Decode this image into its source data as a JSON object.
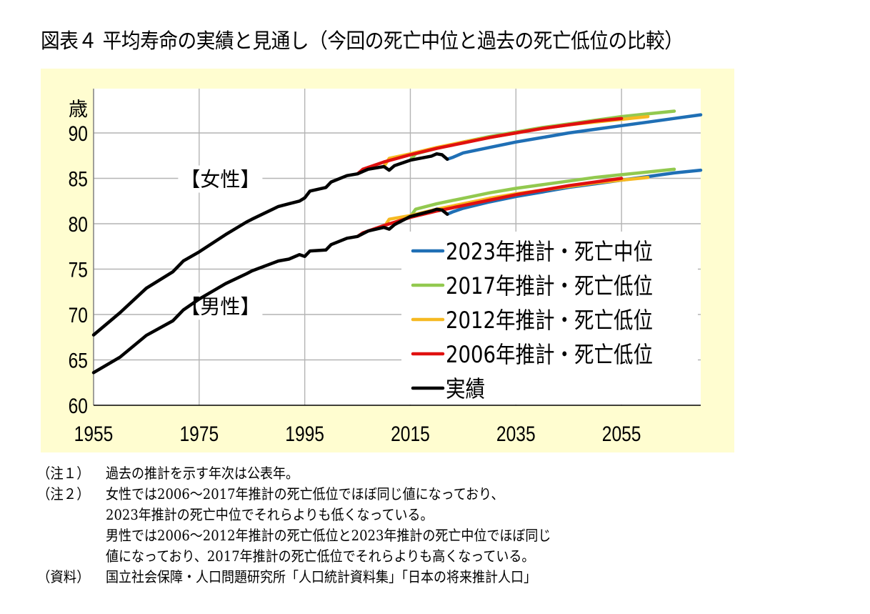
{
  "title": "図表４ 平均寿命の実績と見通し（今回の死亡中位と過去の死亡低位の比較）",
  "colors": {
    "background": "#FFFDD0",
    "plot_background": "#FFFFFF",
    "grid": "#B4B4B4"
  },
  "chart_data": {
    "type": "line",
    "title": "平均寿命の実績と見通し",
    "xlabel": "",
    "ylabel": "歳",
    "xlim": [
      1955,
      2070
    ],
    "ylim": [
      60,
      93
    ],
    "xticks": [
      1955,
      1975,
      1995,
      2015,
      2035,
      2055
    ],
    "yticks": [
      60,
      65,
      70,
      75,
      80,
      85,
      90
    ],
    "grid": true,
    "legend_position": "center-right",
    "annotations": [
      {
        "text": "【女性】",
        "x": 1979,
        "y": 85
      },
      {
        "text": "【男性】",
        "x": 1979,
        "y": 71
      }
    ],
    "series": [
      {
        "name": "2023年推計・死亡中位",
        "key": "blue",
        "color": "#1F6FB5",
        "groups": [
          {
            "sex": "female",
            "x": [
              2022,
              2023,
              2025,
              2030,
              2035,
              2040,
              2045,
              2050,
              2055,
              2060,
              2065,
              2070
            ],
            "y": [
              87.1,
              87.3,
              87.8,
              88.4,
              89.0,
              89.5,
              90.0,
              90.4,
              90.8,
              91.2,
              91.6,
              92.0
            ]
          },
          {
            "sex": "male",
            "x": [
              2022,
              2023,
              2025,
              2030,
              2035,
              2040,
              2045,
              2050,
              2055,
              2060,
              2065,
              2070
            ],
            "y": [
              81.05,
              81.3,
              81.7,
              82.4,
              83.0,
              83.5,
              84.0,
              84.4,
              84.8,
              85.2,
              85.6,
              85.9
            ]
          }
        ]
      },
      {
        "name": "2017年推計・死亡低位",
        "key": "green",
        "color": "#92C94F",
        "groups": [
          {
            "sex": "female",
            "x": [
              2015,
              2016,
              2020,
              2025,
              2030,
              2035,
              2040,
              2045,
              2050,
              2055,
              2060,
              2065
            ],
            "y": [
              87.0,
              87.7,
              88.3,
              89.0,
              89.6,
              90.1,
              90.6,
              91.0,
              91.4,
              91.8,
              92.1,
              92.4
            ]
          },
          {
            "sex": "male",
            "x": [
              2015,
              2016,
              2020,
              2025,
              2030,
              2035,
              2040,
              2045,
              2050,
              2055,
              2060,
              2065
            ],
            "y": [
              80.8,
              81.6,
              82.2,
              82.8,
              83.4,
              83.9,
              84.3,
              84.7,
              85.1,
              85.4,
              85.7,
              86.0
            ]
          }
        ]
      },
      {
        "name": "2012年推計・死亡低位",
        "key": "yellow",
        "color": "#F6B921",
        "groups": [
          {
            "sex": "female",
            "x": [
              2010,
              2011,
              2015,
              2020,
              2025,
              2030,
              2035,
              2040,
              2045,
              2050,
              2055,
              2060
            ],
            "y": [
              86.3,
              87.2,
              87.7,
              88.4,
              89.0,
              89.5,
              90.0,
              90.5,
              90.9,
              91.2,
              91.5,
              91.8
            ]
          },
          {
            "sex": "male",
            "x": [
              2010,
              2011,
              2015,
              2020,
              2025,
              2030,
              2035,
              2040,
              2045,
              2050,
              2055,
              2060
            ],
            "y": [
              79.6,
              80.5,
              80.9,
              81.6,
              82.2,
              82.8,
              83.3,
              83.7,
              84.1,
              84.5,
              84.8,
              85.1
            ]
          }
        ]
      },
      {
        "name": "2006年推計・死亡低位",
        "key": "red",
        "color": "#E0100F",
        "groups": [
          {
            "sex": "female",
            "x": [
              2005,
              2006,
              2010,
              2015,
              2020,
              2025,
              2030,
              2035,
              2040,
              2045,
              2050,
              2055
            ],
            "y": [
              85.5,
              86.0,
              86.8,
              87.6,
              88.3,
              88.9,
              89.5,
              90.0,
              90.5,
              90.9,
              91.3,
              91.6
            ]
          },
          {
            "sex": "male",
            "x": [
              2005,
              2006,
              2010,
              2015,
              2020,
              2025,
              2030,
              2035,
              2040,
              2045,
              2050,
              2055
            ],
            "y": [
              78.6,
              79.0,
              79.8,
              80.7,
              81.4,
              82.0,
              82.6,
              83.2,
              83.7,
              84.2,
              84.6,
              85.0
            ]
          }
        ]
      },
      {
        "name": "実績",
        "key": "black",
        "color": "#000000",
        "groups": [
          {
            "sex": "female",
            "x": [
              1955,
              1960,
              1965,
              1970,
              1972,
              1975,
              1980,
              1984,
              1985,
              1990,
              1992,
              1994,
              1995,
              1996,
              1999,
              2000,
              2003,
              2005,
              2007,
              2010,
              2011,
              2012,
              2015,
              2019,
              2020,
              2021,
              2022
            ],
            "y": [
              67.75,
              70.2,
              72.9,
              74.7,
              75.9,
              76.9,
              78.8,
              80.2,
              80.5,
              81.9,
              82.2,
              82.5,
              82.85,
              83.6,
              83.99,
              84.6,
              85.3,
              85.5,
              86.0,
              86.3,
              85.9,
              86.4,
              87.0,
              87.45,
              87.7,
              87.6,
              87.1
            ]
          },
          {
            "sex": "male",
            "x": [
              1955,
              1960,
              1965,
              1970,
              1972,
              1975,
              1980,
              1984,
              1985,
              1990,
              1992,
              1994,
              1995,
              1996,
              1999,
              2000,
              2003,
              2005,
              2007,
              2010,
              2011,
              2012,
              2015,
              2019,
              2020,
              2021,
              2022
            ],
            "y": [
              63.6,
              65.3,
              67.7,
              69.3,
              70.5,
              71.7,
              73.4,
              74.5,
              74.8,
              75.9,
              76.1,
              76.6,
              76.4,
              77.0,
              77.1,
              77.7,
              78.4,
              78.6,
              79.2,
              79.6,
              79.4,
              79.9,
              80.8,
              81.4,
              81.6,
              81.5,
              81.05
            ]
          }
        ]
      }
    ]
  },
  "notes": [
    {
      "label": "（注１）",
      "lines": [
        "過去の推計を示す年次は公表年。"
      ]
    },
    {
      "label": "（注２）",
      "lines": [
        "女性では2006～2017年推計の死亡低位でほぼ同じ値になっており、",
        "2023年推計の死亡中位でそれらよりも低くなっている。",
        "男性では2006～2012年推計の死亡低位と2023年推計の死亡中位でほぼ同じ",
        "値になっており、2017年推計の死亡低位でそれらよりも高くなっている。"
      ]
    },
    {
      "label": "（資料）",
      "lines": [
        "国立社会保障・人口問題研究所「人口統計資料集」「日本の将来推計人口」"
      ]
    }
  ]
}
